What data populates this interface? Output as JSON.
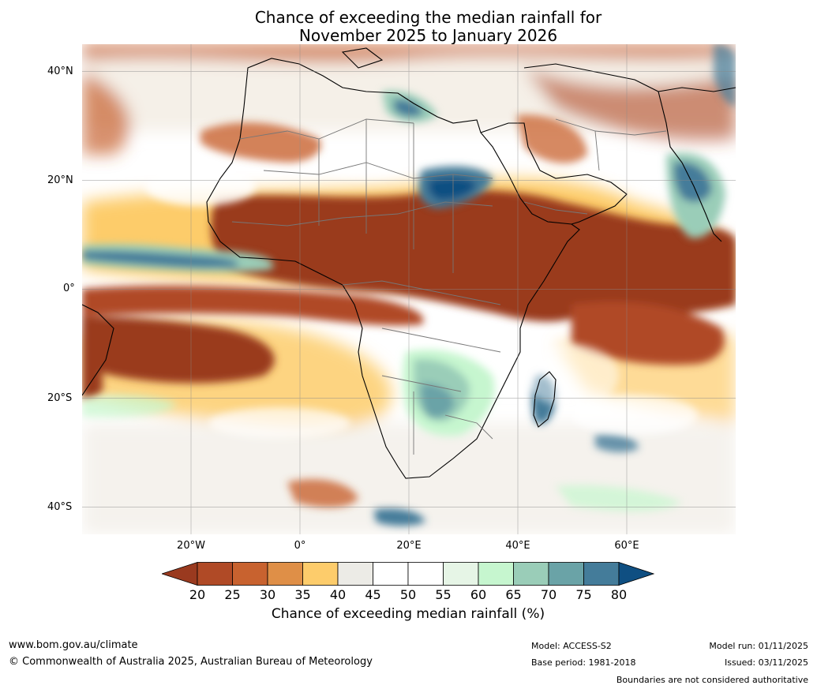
{
  "title": {
    "line1": "Chance of exceeding the median rainfall for",
    "line2": "November 2025 to January 2026"
  },
  "axes": {
    "lat_labels": [
      "40°N",
      "20°N",
      "0°",
      "20°S",
      "40°S"
    ],
    "lon_labels": [
      "20°W",
      "0°",
      "20°E",
      "40°E",
      "60°E"
    ]
  },
  "colorbar": {
    "label": "Chance of exceeding median rainfall (%)",
    "ticks": [
      "20",
      "25",
      "30",
      "35",
      "40",
      "45",
      "50",
      "55",
      "60",
      "65",
      "70",
      "75",
      "80"
    ],
    "colors": [
      "#9a3a1f",
      "#b04a26",
      "#c8622f",
      "#df8f47",
      "#fdcc6b",
      "#ecebe6",
      "#ffffff",
      "#ffffff",
      "#e6f5e6",
      "#c6f6cf",
      "#9acdb8",
      "#6aa3a7",
      "#447c9a",
      "#0f4f82"
    ]
  },
  "footer": {
    "website": "www.bom.gov.au/climate",
    "copyright": "© Commonwealth of Australia 2025, Australian Bureau of Meteorology",
    "model": "Model: ACCESS-S2",
    "base_period": "Base period: 1981-2018",
    "model_run": "Model run: 01/11/2025",
    "issued": "Issued: 03/11/2025",
    "disclaimer": "Boundaries are not considered authoritative"
  },
  "map": {
    "extent": {
      "lon_min": -40,
      "lon_max": 80,
      "lat_min": -45,
      "lat_max": 45
    },
    "graticule": {
      "lons": [
        -20,
        0,
        20,
        40,
        60
      ],
      "lats": [
        -40,
        -20,
        0,
        20,
        40
      ]
    }
  }
}
